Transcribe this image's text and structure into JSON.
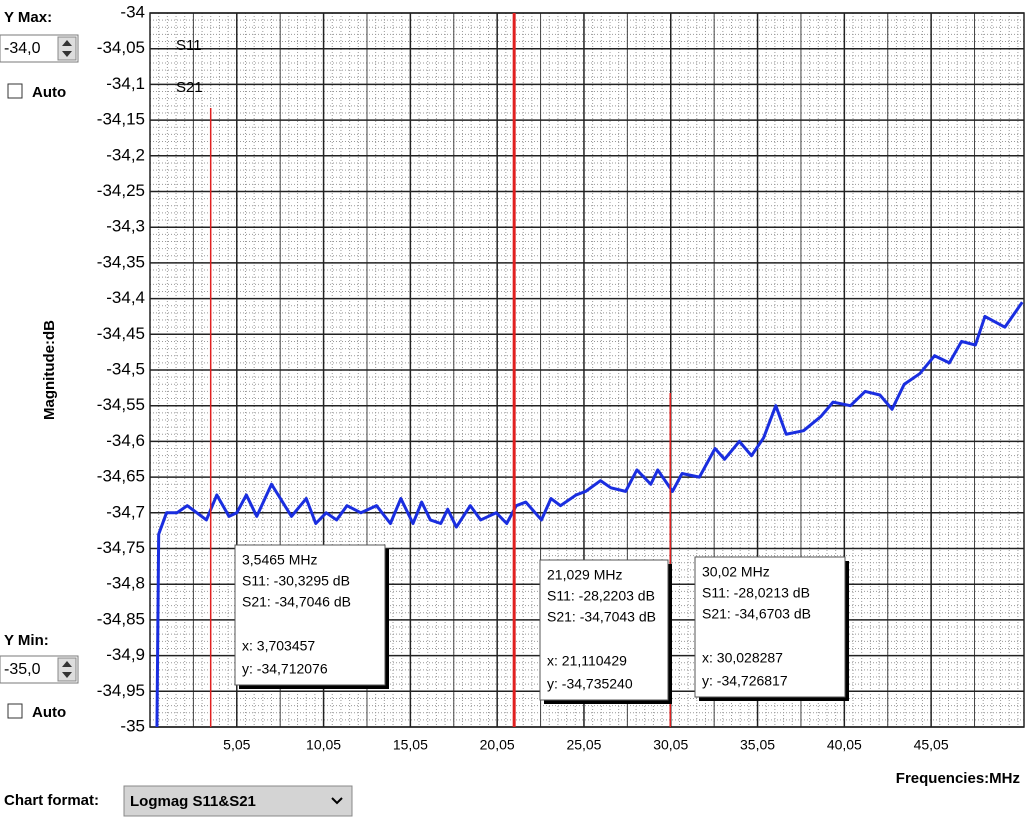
{
  "controls": {
    "ymax_label": "Y Max:",
    "ymax_value": "-34,0",
    "ymax_auto": "Auto",
    "ymin_label": "Y Min:",
    "ymin_value": "-35,0",
    "ymin_auto": "Auto",
    "format_label": "Chart format:",
    "format_value": "Logmag S11&S21"
  },
  "chart_data": {
    "type": "line",
    "y_label": "Magnitude:dB",
    "x_label": "Frequencies:MHz",
    "xlim": [
      0.05,
      50.4
    ],
    "ylim": [
      -35,
      -34
    ],
    "yticks": [
      {
        "value": -35,
        "label": "-35"
      },
      {
        "value": -34.95,
        "label": "-34,95"
      },
      {
        "value": -34.9,
        "label": "-34,9"
      },
      {
        "value": -34.85,
        "label": "-34,85"
      },
      {
        "value": -34.8,
        "label": "-34,8"
      },
      {
        "value": -34.75,
        "label": "-34,75"
      },
      {
        "value": -34.7,
        "label": "-34,7"
      },
      {
        "value": -34.65,
        "label": "-34,65"
      },
      {
        "value": -34.6,
        "label": "-34,6"
      },
      {
        "value": -34.55,
        "label": "-34,55"
      },
      {
        "value": -34.5,
        "label": "-34,5"
      },
      {
        "value": -34.45,
        "label": "-34,45"
      },
      {
        "value": -34.4,
        "label": "-34,4"
      },
      {
        "value": -34.35,
        "label": "-34,35"
      },
      {
        "value": -34.3,
        "label": "-34,3"
      },
      {
        "value": -34.25,
        "label": "-34,25"
      },
      {
        "value": -34.2,
        "label": "-34,2"
      },
      {
        "value": -34.15,
        "label": "-34,15"
      },
      {
        "value": -34.1,
        "label": "-34,1"
      },
      {
        "value": -34.05,
        "label": "-34,05"
      },
      -34
    ],
    "xticks": [
      {
        "value": 5.05,
        "label": "5,05"
      },
      {
        "value": 10.05,
        "label": "10,05"
      },
      {
        "value": 15.05,
        "label": "15,05"
      },
      {
        "value": 20.05,
        "label": "20,05"
      },
      {
        "value": 25.05,
        "label": "25,05"
      },
      {
        "value": 30.05,
        "label": "30,05"
      },
      {
        "value": 35.05,
        "label": "35,05"
      },
      {
        "value": 40.05,
        "label": "40,05"
      },
      {
        "value": 45.05,
        "label": "45,05"
      }
    ],
    "grid": true,
    "series": [
      {
        "name": "S11",
        "color": "#e02020",
        "x": [],
        "values": []
      },
      {
        "name": "S21",
        "color": "#1a2ee0",
        "x": [
          0.45,
          0.55,
          1.0,
          1.6,
          2.2,
          2.75,
          3.3,
          3.9,
          4.6,
          5.05,
          5.6,
          6.2,
          7.05,
          8.2,
          9.05,
          9.6,
          10.2,
          10.8,
          11.4,
          12.2,
          13.1,
          13.9,
          14.5,
          15.2,
          15.7,
          16.2,
          16.8,
          17.2,
          17.7,
          18.5,
          19.1,
          20.0,
          20.6,
          21.15,
          21.7,
          22.6,
          23.15,
          23.7,
          24.6,
          25.15,
          26.0,
          26.6,
          27.45,
          28.1,
          28.9,
          29.3,
          30.15,
          30.7,
          31.7,
          32.6,
          33.15,
          34.0,
          34.7,
          35.4,
          36.1,
          36.7,
          37.7,
          38.7,
          39.4,
          40.4,
          41.25,
          42.1,
          42.8,
          43.5,
          44.4,
          45.25,
          46.1,
          46.8,
          47.6,
          48.15,
          49.3,
          50.3
        ],
        "values": [
          -35,
          -34.73,
          -34.7,
          -34.7,
          -34.69,
          -34.7,
          -34.71,
          -34.675,
          -34.705,
          -34.7,
          -34.675,
          -34.705,
          -34.66,
          -34.705,
          -34.68,
          -34.715,
          -34.7,
          -34.71,
          -34.69,
          -34.7,
          -34.69,
          -34.715,
          -34.68,
          -34.715,
          -34.685,
          -34.71,
          -34.715,
          -34.695,
          -34.72,
          -34.69,
          -34.71,
          -34.7,
          -34.715,
          -34.69,
          -34.685,
          -34.71,
          -34.68,
          -34.69,
          -34.675,
          -34.67,
          -34.655,
          -34.665,
          -34.67,
          -34.64,
          -34.66,
          -34.64,
          -34.67,
          -34.645,
          -34.65,
          -34.61,
          -34.625,
          -34.6,
          -34.62,
          -34.595,
          -34.55,
          -34.59,
          -34.585,
          -34.565,
          -34.545,
          -34.55,
          -34.53,
          -34.535,
          -34.555,
          -34.52,
          -34.505,
          -34.48,
          -34.49,
          -34.46,
          -34.465,
          -34.425,
          -34.44,
          -34.405
        ]
      }
    ],
    "markers": [
      {
        "x": 3.5465,
        "lines": [
          "3,5465 MHz",
          "S11:  -30,3295 dB",
          "S21:  -34,7046 dB",
          "x: 3,703457",
          "y: -34,712076"
        ]
      },
      {
        "x": 21.029,
        "lines": [
          "21,029 MHz",
          "S11:  -28,2203 dB",
          "S21:  -34,7043 dB",
          "x: 21,110429",
          "y: -34,735240"
        ]
      },
      {
        "x": 30.02,
        "lines": [
          "30,02 MHz",
          "S11:  -28,0213 dB",
          "S21:  -34,6703 dB",
          "x: 30,028287",
          "y: -34,726817"
        ]
      }
    ]
  }
}
